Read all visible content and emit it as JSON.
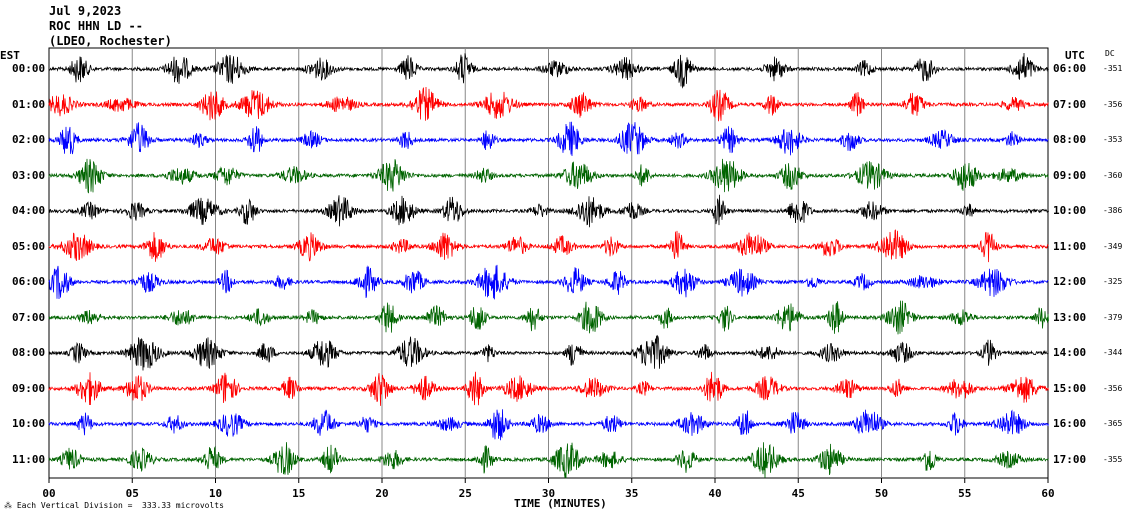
{
  "header": {
    "date": "Jul 9,2023",
    "station": "ROC HHN LD --",
    "network": "(LDEO, Rochester)"
  },
  "corner": {
    "left": "EST",
    "right": "UTC",
    "dc": "DC"
  },
  "footer": {
    "xlabel": "TIME (MINUTES)",
    "scale_note": "Each Vertical Division =  333.33 microvolts"
  },
  "colors": {
    "black": "#000000",
    "red": "#ff0000",
    "blue": "#0000ff",
    "green": "#006400"
  },
  "chart_data": {
    "type": "line",
    "title": "",
    "xlabel": "TIME (MINUTES)",
    "xlim": [
      0,
      60
    ],
    "xticks": [
      "00",
      "05",
      "10",
      "15",
      "20",
      "25",
      "30",
      "35",
      "40",
      "45",
      "50",
      "55",
      "60"
    ],
    "rows": [
      {
        "est": "00:00",
        "utc": "06:00",
        "dc": "-351",
        "color": "#000000"
      },
      {
        "est": "01:00",
        "utc": "07:00",
        "dc": "-356",
        "color": "#ff0000"
      },
      {
        "est": "02:00",
        "utc": "08:00",
        "dc": "-353",
        "color": "#0000ff"
      },
      {
        "est": "03:00",
        "utc": "09:00",
        "dc": "-360",
        "color": "#006400"
      },
      {
        "est": "04:00",
        "utc": "10:00",
        "dc": "-386",
        "color": "#000000"
      },
      {
        "est": "05:00",
        "utc": "11:00",
        "dc": "-349",
        "color": "#ff0000"
      },
      {
        "est": "06:00",
        "utc": "12:00",
        "dc": "-325",
        "color": "#0000ff"
      },
      {
        "est": "07:00",
        "utc": "13:00",
        "dc": "-379",
        "color": "#006400"
      },
      {
        "est": "08:00",
        "utc": "14:00",
        "dc": "-344",
        "color": "#000000"
      },
      {
        "est": "09:00",
        "utc": "15:00",
        "dc": "-356",
        "color": "#ff0000"
      },
      {
        "est": "10:00",
        "utc": "16:00",
        "dc": "-365",
        "color": "#0000ff"
      },
      {
        "est": "11:00",
        "utc": "17:00",
        "dc": "-355",
        "color": "#006400"
      }
    ],
    "grid": true
  }
}
